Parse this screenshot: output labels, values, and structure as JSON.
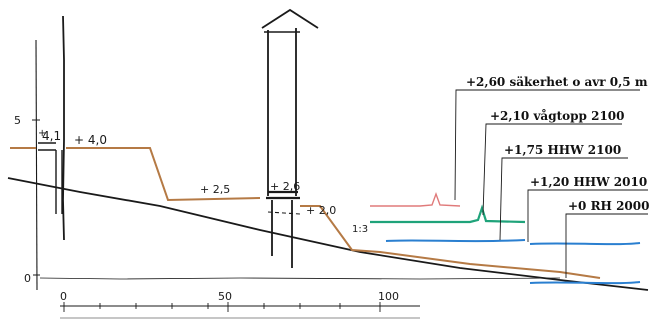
{
  "colors": {
    "ink": "#1a1a1a",
    "surface": "#b57a45",
    "safety": "#e07a7a",
    "wave": "#1fa37a",
    "hhw": "#2a7fd0"
  },
  "profile": {
    "label_left_top": "4,1",
    "label_left_plus": "+",
    "label_plateau": "+ 4,0",
    "label_mid": "+ 2,5",
    "label_house": "+ 2,6",
    "label_bank": "+ 2,0",
    "label_slope": "1:3"
  },
  "axis": {
    "vertical_tick_5": "5",
    "vertical_tick_0": "0",
    "x_ticks": [
      "0",
      "50",
      "100"
    ]
  },
  "levels": [
    {
      "label": "+2,60 säkerhet o avr 0,5 m",
      "color_key": "safety"
    },
    {
      "label": "+2,10 vågtopp 2100",
      "color_key": "wave"
    },
    {
      "label": "+1,75 HHW 2100",
      "color_key": "hhw"
    },
    {
      "label": "+1,20 HHW 2010",
      "color_key": "hhw"
    },
    {
      "label": "+0 RH 2000",
      "color_key": "hhw"
    }
  ]
}
